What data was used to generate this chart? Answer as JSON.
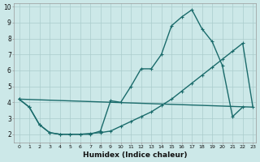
{
  "xlabel": "Humidex (Indice chaleur)",
  "bg_color": "#cce8e8",
  "grid_color": "#aacccc",
  "line_color": "#1a6b6b",
  "xlim": [
    -0.5,
    23.3
  ],
  "ylim": [
    1.5,
    10.2
  ],
  "xticks": [
    0,
    1,
    2,
    3,
    4,
    5,
    6,
    7,
    8,
    9,
    10,
    11,
    12,
    13,
    14,
    15,
    16,
    17,
    18,
    19,
    20,
    21,
    22,
    23
  ],
  "yticks": [
    2,
    3,
    4,
    5,
    6,
    7,
    8,
    9,
    10
  ],
  "line1_x": [
    0,
    1,
    2,
    3,
    4,
    5,
    6,
    7,
    8,
    9,
    10,
    11,
    12,
    13,
    14,
    15,
    16,
    17,
    18,
    19,
    20,
    21,
    22
  ],
  "line1_y": [
    4.2,
    3.7,
    2.6,
    2.1,
    2.0,
    2.0,
    2.0,
    2.0,
    2.2,
    4.1,
    4.0,
    5.0,
    6.1,
    6.1,
    7.0,
    8.8,
    9.35,
    9.8,
    8.6,
    7.8,
    6.3,
    3.1,
    3.7
  ],
  "line2_x": [
    0,
    1,
    2,
    3,
    4,
    5,
    6,
    7,
    8,
    9,
    10,
    11,
    12,
    13,
    14,
    15,
    16,
    17,
    18,
    19,
    20,
    21,
    22,
    23
  ],
  "line2_y": [
    4.2,
    3.7,
    2.6,
    2.1,
    2.0,
    2.0,
    2.0,
    2.05,
    2.1,
    2.2,
    2.5,
    2.8,
    3.1,
    3.4,
    3.8,
    4.2,
    4.7,
    5.2,
    5.7,
    6.2,
    6.7,
    7.2,
    7.7,
    3.7
  ],
  "line3_x": [
    0,
    23
  ],
  "line3_y": [
    4.2,
    3.7
  ],
  "markersize": 3.5,
  "linewidth": 1.0
}
